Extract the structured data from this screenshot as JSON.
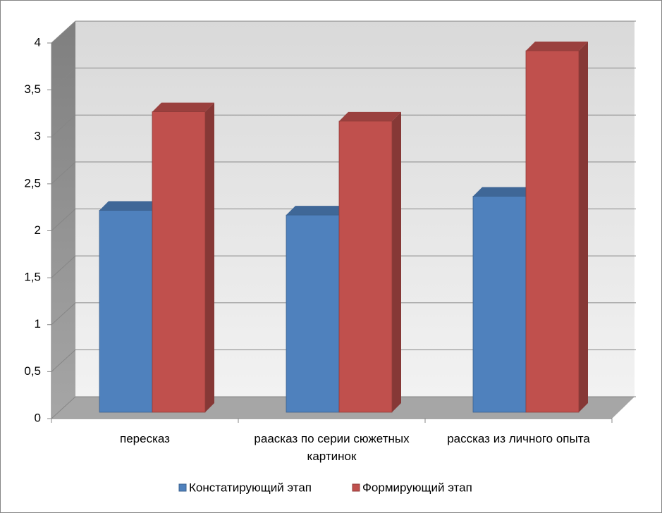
{
  "chart_data": {
    "type": "bar3d",
    "categories": [
      "пересказ",
      "раасказ по серии сюжетных картинок",
      "рассказ из личного опыта"
    ],
    "series": [
      {
        "name": "Констатирующий этап",
        "color": "#4f81bd",
        "values": [
          2.15,
          2.1,
          2.3
        ]
      },
      {
        "name": "Формирующий этап",
        "color": "#c0504d",
        "values": [
          3.2,
          3.1,
          3.85
        ]
      }
    ],
    "ylim": [
      0,
      4
    ],
    "yticks": [
      0,
      {
        "value": 0.5,
        "label": "0,5"
      },
      1,
      {
        "value": 1.5,
        "label": "1,5"
      },
      2,
      {
        "value": 2.5,
        "label": "2,5"
      },
      3,
      {
        "value": 3.5,
        "label": "3,5"
      },
      4
    ],
    "grid": true,
    "legend": "bottom"
  }
}
